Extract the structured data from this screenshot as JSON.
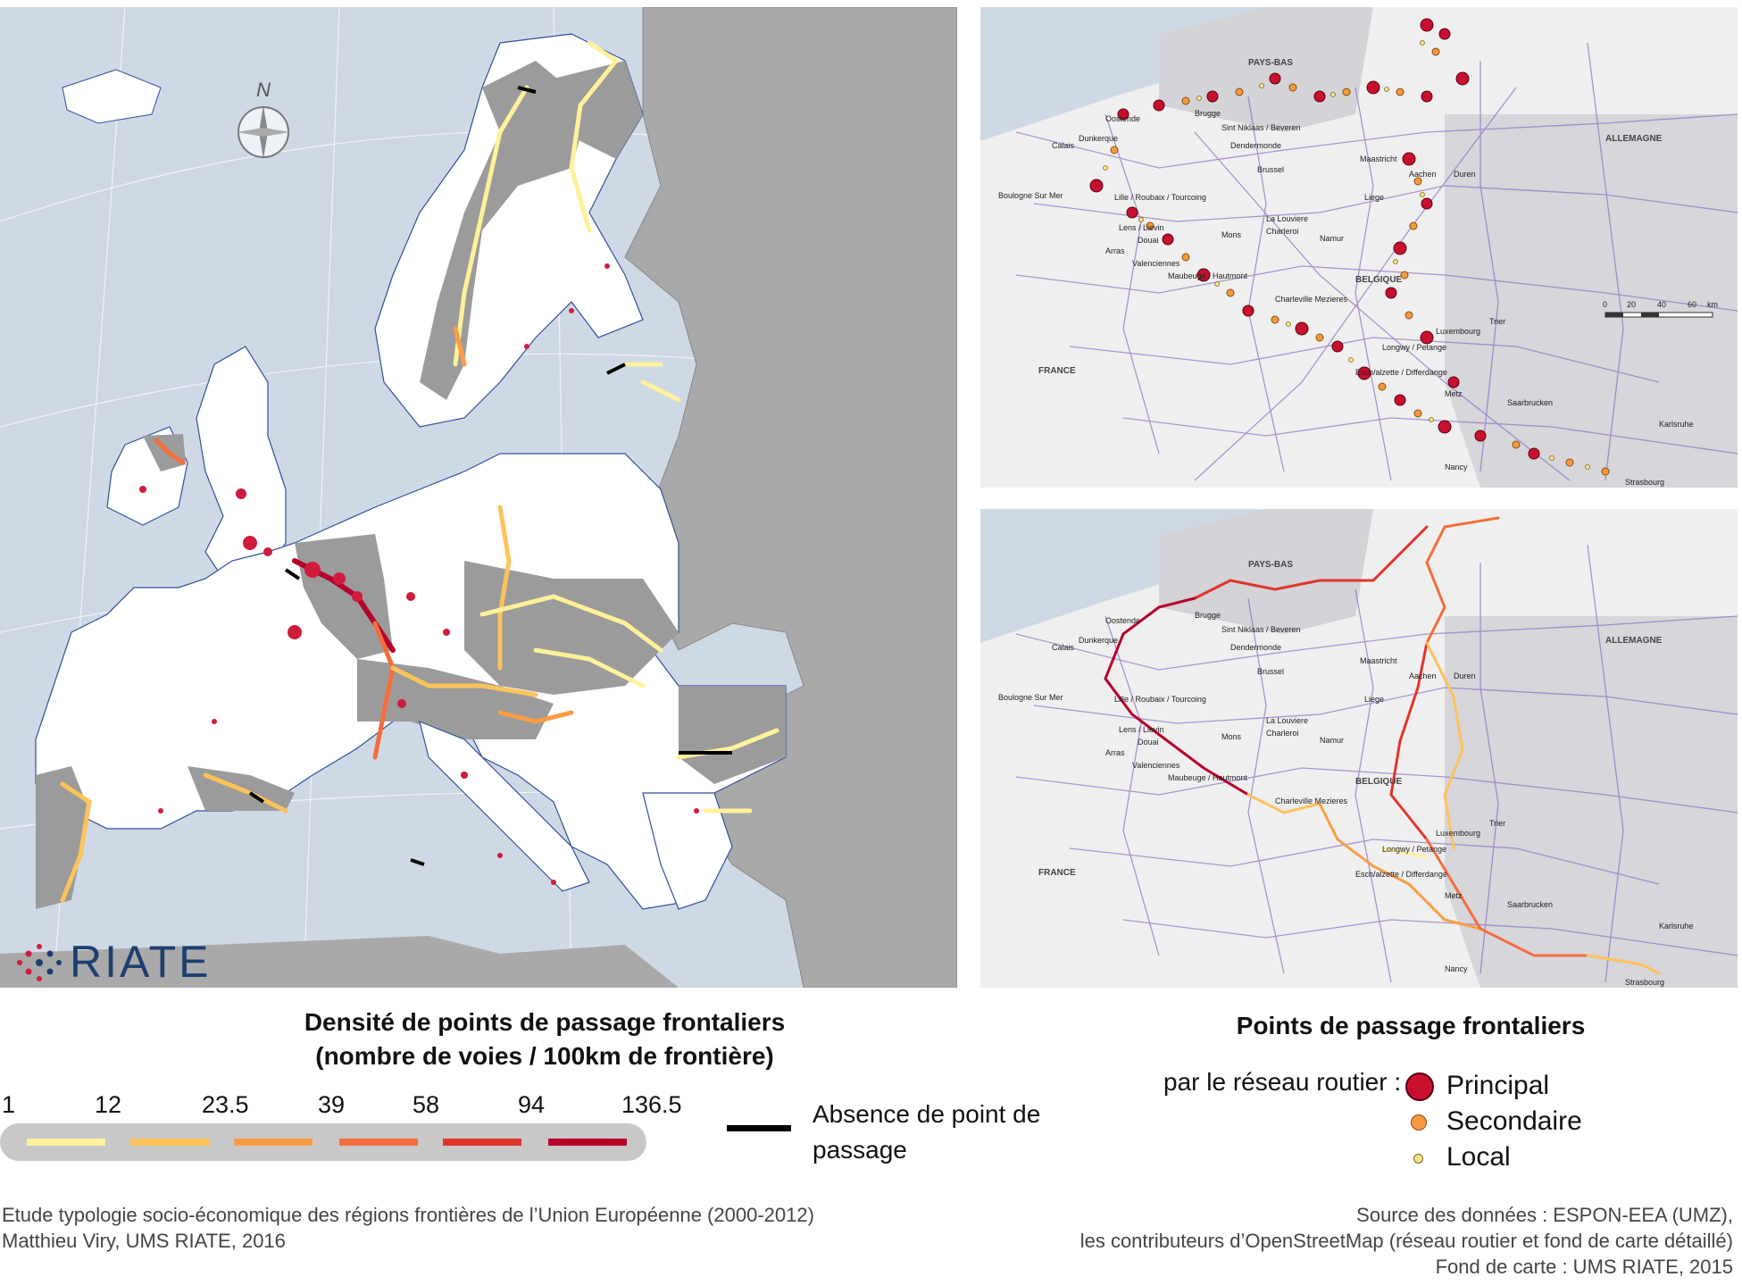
{
  "left_map": {
    "north_label": "N",
    "logo_text": "RIATE",
    "colors": {
      "sea": "#cfd9e6",
      "land_outside": "#a9a9a9",
      "eu_land": "#ffffff",
      "border_region": "#9b9b9b",
      "cities": "#d01b3c",
      "coast": "#2f4f9a"
    }
  },
  "right_top_map": {
    "labels": {
      "pays_bas": "PAYS-BAS",
      "allemagne": "ALLEMAGNE",
      "belgique": "BELGIQUE",
      "france": "FRANCE",
      "oostende": "Oostende",
      "brugge": "Brugge",
      "sint_niklaas": "Sint Niklaas / Beveren",
      "dendermonde": "Dendermonde",
      "calais": "Calais",
      "dunkerque": "Dunkerque",
      "brussel": "Brussel",
      "maastricht": "Maastricht",
      "aachen": "Aachen",
      "duren": "Duren",
      "liege": "Liege",
      "boulogne": "Boulogne Sur Mer",
      "lille": "Lille / Roubaix / Tourcoing",
      "la_louviere": "La Louviere",
      "charleroi": "Charleroi",
      "lens": "Lens / Lievin",
      "douai": "Douai",
      "arras": "Arras",
      "mons": "Mons",
      "namur": "Namur",
      "valenciennes": "Valenciennes",
      "maubeuge": "Maubeuge / Hautmont",
      "charleville": "Charleville Mezieres",
      "trier": "Trier",
      "luxembourg": "Luxembourg",
      "longwy": "Longwy / Petange",
      "esch": "Esch/alzette / Differdange",
      "metz": "Metz",
      "saarbrucken": "Saarbrucken",
      "karlsruhe": "Karlsruhe",
      "nancy": "Nancy",
      "strasbourg": "Strasbourg"
    },
    "scalebar": [
      "0",
      "20",
      "40",
      "60",
      "km"
    ]
  },
  "right_bottom_map": {
    "labels": {
      "pays_bas": "PAYS-BAS",
      "allemagne": "ALLEMAGNE",
      "belgique": "BELGIQUE",
      "france": "FRANCE",
      "oostende": "Oostende",
      "brugge": "Brugge",
      "sint_niklaas": "Sint Niklaas / Beveren",
      "dendermonde": "Dendermonde",
      "calais": "Calais",
      "dunkerque": "Dunkerque",
      "brussel": "Brussel",
      "maastricht": "Maastricht",
      "aachen": "Aachen",
      "duren": "Duren",
      "liege": "Liege",
      "boulogne": "Boulogne Sur Mer",
      "lille": "Lille / Roubaix / Tourcoing",
      "la_louviere": "La Louviere",
      "charleroi": "Charleroi",
      "lens": "Lens / Lievin",
      "douai": "Douai",
      "arras": "Arras",
      "mons": "Mons",
      "namur": "Namur",
      "valenciennes": "Valenciennes",
      "maubeuge": "Maubeuge / Hautmont",
      "charleville": "Charleville Mezieres",
      "trier": "Trier",
      "luxembourg": "Luxembourg",
      "longwy": "Longwy / Petange",
      "esch": "Esch/alzette / Differdange",
      "metz": "Metz",
      "saarbrucken": "Saarbrucken",
      "karlsruhe": "Karlsruhe",
      "nancy": "Nancy",
      "strasbourg": "Strasbourg"
    }
  },
  "legend_density": {
    "title_line1": "Densité de points de passage frontaliers",
    "title_line2": "(nombre de voies / 100km de frontière)",
    "ticks": [
      "1",
      "12",
      "23.5",
      "39",
      "58",
      "94",
      "136.5"
    ],
    "colors": [
      "#fff19a",
      "#fdc35a",
      "#f99d45",
      "#f46d3a",
      "#e0352a",
      "#b5002a"
    ],
    "absence_label": "Absence de point de passage"
  },
  "legend_points": {
    "title": "Points de passage frontaliers",
    "subtitle": "par le réseau routier :",
    "items": [
      {
        "label": "Principal",
        "color": "#c8102e"
      },
      {
        "label": "Secondaire",
        "color": "#f59a3c"
      },
      {
        "label": "Local",
        "color": "#fde28a"
      }
    ]
  },
  "footer": {
    "left_line1": "Etude typologie socio-économique des régions frontières de l’Union Européenne (2000-2012)",
    "left_line2": "Matthieu Viry, UMS RIATE, 2016",
    "right_line1": "Source des données : ESPON-EEA (UMZ),",
    "right_line2": "les contributeurs d’OpenStreetMap (réseau routier et fond de carte détaillé)",
    "right_line3": "Fond de carte : UMS RIATE, 2015"
  }
}
